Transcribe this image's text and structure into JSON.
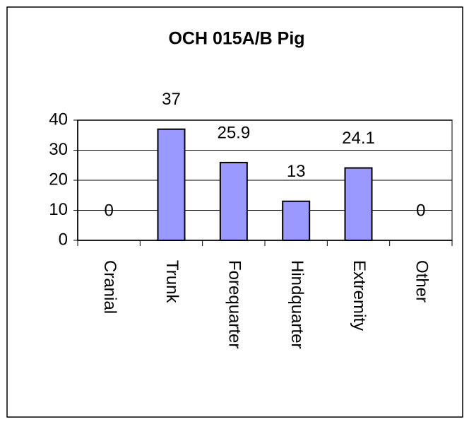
{
  "chart_data": {
    "type": "bar",
    "title": "OCH 015A/B Pig",
    "categories": [
      "Cranial",
      "Trunk",
      "Forequarter",
      "Hindquarter",
      "Extremity",
      "Other"
    ],
    "values": [
      0,
      37,
      25.9,
      13,
      24.1,
      0
    ],
    "color": "#9999ff",
    "ylim": [
      0,
      40
    ],
    "yticks": [
      0,
      10,
      20,
      30,
      40
    ],
    "grid": true
  }
}
